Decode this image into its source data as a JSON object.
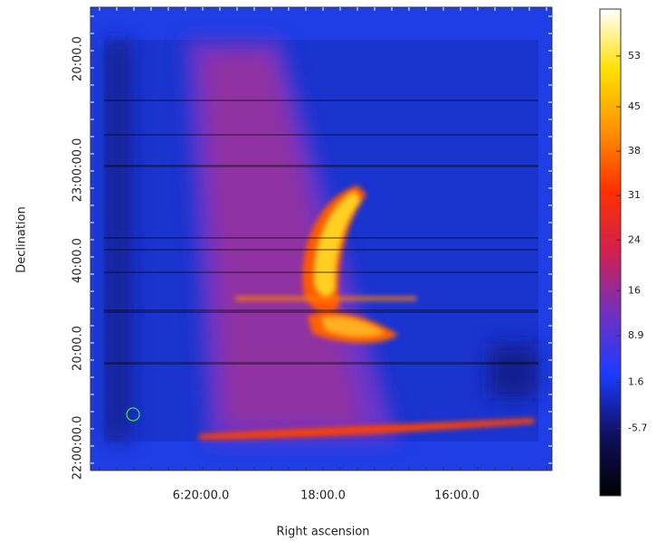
{
  "chart_data": {
    "type": "image",
    "xlabel": "Right ascension",
    "ylabel": "Declination",
    "xtick_labels": [
      "6:20:00.0",
      "18:00.0",
      "16:00.0"
    ],
    "ytick_labels": [
      "22:00:00.0",
      "20:00.0",
      "40:00.0",
      "23:00:00.0",
      "20:00.0"
    ],
    "colorbar": {
      "clim": [
        -16.3,
        60.4
      ],
      "ticks": [
        53,
        45,
        38,
        31,
        24,
        16,
        8.9,
        1.6,
        -5.7
      ],
      "colors": [
        "#000000",
        "#101060",
        "#1a3cff",
        "#7030c0",
        "#d02050",
        "#ff3000",
        "#ff9000",
        "#ffe000",
        "#ffffff"
      ]
    }
  }
}
